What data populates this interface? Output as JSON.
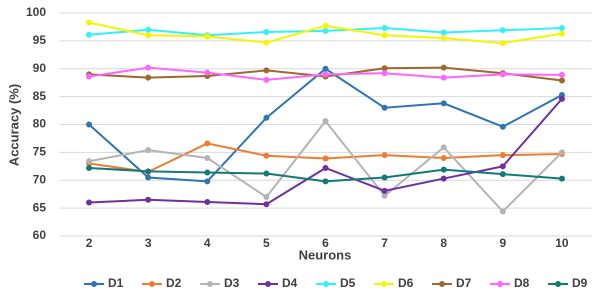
{
  "chart_data": {
    "type": "line",
    "x_label": "Neurons",
    "y_label": "Accuracy (%)",
    "x": [
      2,
      3,
      4,
      5,
      6,
      7,
      8,
      9,
      10
    ],
    "xlim": [
      1.5,
      10.5
    ],
    "xticks": [
      2,
      3,
      4,
      5,
      6,
      7,
      8,
      9,
      10
    ],
    "ylim": [
      60,
      100
    ],
    "yticks": [
      60,
      65,
      70,
      75,
      80,
      85,
      90,
      95,
      100
    ],
    "grid": true,
    "legend": "bottom",
    "series": [
      {
        "name": "D1",
        "color": "#2e75b6",
        "values": [
          80,
          70.5,
          69.8,
          81.2,
          90,
          83,
          83.8,
          79.6,
          85.3
        ]
      },
      {
        "name": "D2",
        "color": "#ed7d31",
        "values": [
          73,
          71.5,
          76.6,
          74.4,
          73.9,
          74.5,
          74,
          74.5,
          74.7
        ]
      },
      {
        "name": "D3",
        "color": "#b4b4b4",
        "values": [
          73.4,
          75.4,
          74,
          67,
          80.6,
          67.2,
          75.9,
          64.4,
          75
        ]
      },
      {
        "name": "D4",
        "color": "#7030a0",
        "values": [
          66,
          66.5,
          66.1,
          65.7,
          72.2,
          68.1,
          70.3,
          72.5,
          84.6
        ]
      },
      {
        "name": "D5",
        "color": "#33f0ff",
        "values": [
          96.1,
          97,
          96,
          96.6,
          96.8,
          97.3,
          96.5,
          96.9,
          97.3
        ]
      },
      {
        "name": "D6",
        "color": "#f5f500",
        "values": [
          98.3,
          96,
          95.8,
          94.7,
          97.7,
          96,
          95.5,
          94.6,
          96.3
        ]
      },
      {
        "name": "D7",
        "color": "#9c6a2e",
        "values": [
          89,
          88.4,
          88.7,
          89.7,
          88.6,
          90.1,
          90.2,
          89.2,
          87.9
        ]
      },
      {
        "name": "D8",
        "color": "#ff66ff",
        "values": [
          88.6,
          90.2,
          89.3,
          88,
          89,
          89.2,
          88.4,
          89,
          88.9
        ]
      },
      {
        "name": "D9",
        "color": "#127a78",
        "values": [
          72.2,
          71.6,
          71.4,
          71.2,
          69.8,
          70.5,
          71.9,
          71.1,
          70.3
        ]
      }
    ]
  }
}
